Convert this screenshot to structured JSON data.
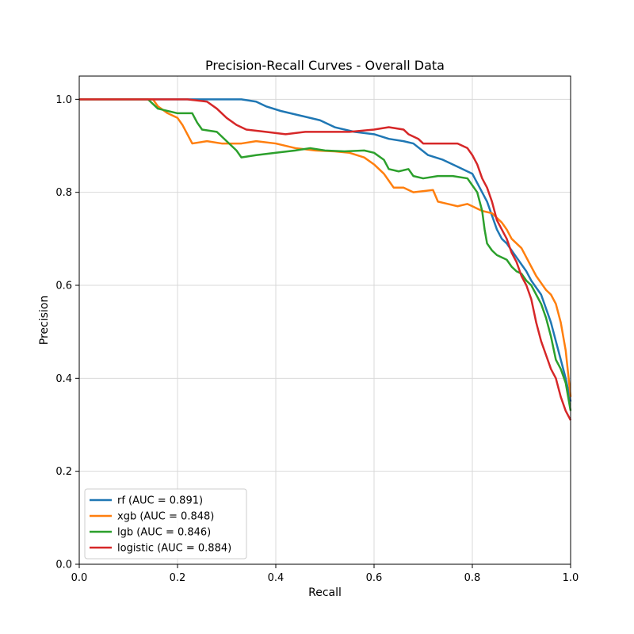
{
  "chart_data": {
    "type": "line",
    "title": "Precision-Recall Curves - Overall Data",
    "xlabel": "Recall",
    "ylabel": "Precision",
    "xlim": [
      0.0,
      1.0
    ],
    "ylim": [
      0.0,
      1.05
    ],
    "xticks": [
      0.0,
      0.2,
      0.4,
      0.6,
      0.8,
      1.0
    ],
    "yticks": [
      0.0,
      0.2,
      0.4,
      0.6,
      0.8,
      1.0
    ],
    "xtick_labels": [
      "0.0",
      "0.2",
      "0.4",
      "0.6",
      "0.8",
      "1.0"
    ],
    "ytick_labels": [
      "0.0",
      "0.2",
      "0.4",
      "0.6",
      "0.8",
      "1.0"
    ],
    "grid": true,
    "legend_position": "lower-left",
    "series": [
      {
        "name": "rf (AUC = 0.891)",
        "color": "#1f77b4",
        "points": [
          [
            0.0,
            1.0
          ],
          [
            0.33,
            1.0
          ],
          [
            0.36,
            0.995
          ],
          [
            0.38,
            0.985
          ],
          [
            0.41,
            0.975
          ],
          [
            0.45,
            0.965
          ],
          [
            0.49,
            0.955
          ],
          [
            0.52,
            0.94
          ],
          [
            0.56,
            0.93
          ],
          [
            0.6,
            0.925
          ],
          [
            0.63,
            0.915
          ],
          [
            0.66,
            0.91
          ],
          [
            0.68,
            0.905
          ],
          [
            0.71,
            0.88
          ],
          [
            0.74,
            0.87
          ],
          [
            0.77,
            0.855
          ],
          [
            0.8,
            0.84
          ],
          [
            0.81,
            0.82
          ],
          [
            0.82,
            0.8
          ],
          [
            0.83,
            0.78
          ],
          [
            0.84,
            0.75
          ],
          [
            0.85,
            0.72
          ],
          [
            0.86,
            0.7
          ],
          [
            0.87,
            0.69
          ],
          [
            0.88,
            0.675
          ],
          [
            0.89,
            0.66
          ],
          [
            0.9,
            0.645
          ],
          [
            0.91,
            0.63
          ],
          [
            0.92,
            0.61
          ],
          [
            0.94,
            0.58
          ],
          [
            0.95,
            0.55
          ],
          [
            0.96,
            0.52
          ],
          [
            0.97,
            0.48
          ],
          [
            0.98,
            0.44
          ],
          [
            0.99,
            0.4
          ],
          [
            1.0,
            0.35
          ]
        ]
      },
      {
        "name": "xgb (AUC = 0.848)",
        "color": "#ff7f0e",
        "points": [
          [
            0.0,
            1.0
          ],
          [
            0.15,
            1.0
          ],
          [
            0.16,
            0.985
          ],
          [
            0.18,
            0.97
          ],
          [
            0.2,
            0.96
          ],
          [
            0.21,
            0.945
          ],
          [
            0.22,
            0.925
          ],
          [
            0.23,
            0.905
          ],
          [
            0.26,
            0.91
          ],
          [
            0.29,
            0.905
          ],
          [
            0.33,
            0.905
          ],
          [
            0.36,
            0.91
          ],
          [
            0.4,
            0.905
          ],
          [
            0.44,
            0.895
          ],
          [
            0.48,
            0.89
          ],
          [
            0.52,
            0.888
          ],
          [
            0.55,
            0.885
          ],
          [
            0.58,
            0.875
          ],
          [
            0.6,
            0.86
          ],
          [
            0.62,
            0.84
          ],
          [
            0.63,
            0.825
          ],
          [
            0.64,
            0.81
          ],
          [
            0.66,
            0.81
          ],
          [
            0.68,
            0.8
          ],
          [
            0.72,
            0.805
          ],
          [
            0.73,
            0.78
          ],
          [
            0.75,
            0.775
          ],
          [
            0.77,
            0.77
          ],
          [
            0.79,
            0.775
          ],
          [
            0.8,
            0.77
          ],
          [
            0.81,
            0.765
          ],
          [
            0.82,
            0.76
          ],
          [
            0.84,
            0.755
          ],
          [
            0.85,
            0.745
          ],
          [
            0.86,
            0.735
          ],
          [
            0.87,
            0.72
          ],
          [
            0.88,
            0.7
          ],
          [
            0.89,
            0.69
          ],
          [
            0.9,
            0.68
          ],
          [
            0.91,
            0.66
          ],
          [
            0.92,
            0.64
          ],
          [
            0.93,
            0.62
          ],
          [
            0.94,
            0.605
          ],
          [
            0.95,
            0.59
          ],
          [
            0.96,
            0.58
          ],
          [
            0.97,
            0.56
          ],
          [
            0.98,
            0.52
          ],
          [
            0.99,
            0.46
          ],
          [
            1.0,
            0.36
          ]
        ]
      },
      {
        "name": "lgb (AUC = 0.846)",
        "color": "#2ca02c",
        "points": [
          [
            0.0,
            1.0
          ],
          [
            0.14,
            1.0
          ],
          [
            0.16,
            0.98
          ],
          [
            0.2,
            0.97
          ],
          [
            0.23,
            0.97
          ],
          [
            0.24,
            0.95
          ],
          [
            0.25,
            0.935
          ],
          [
            0.28,
            0.93
          ],
          [
            0.3,
            0.91
          ],
          [
            0.32,
            0.89
          ],
          [
            0.33,
            0.875
          ],
          [
            0.36,
            0.88
          ],
          [
            0.4,
            0.885
          ],
          [
            0.44,
            0.89
          ],
          [
            0.47,
            0.895
          ],
          [
            0.5,
            0.89
          ],
          [
            0.54,
            0.888
          ],
          [
            0.58,
            0.89
          ],
          [
            0.6,
            0.885
          ],
          [
            0.62,
            0.87
          ],
          [
            0.63,
            0.85
          ],
          [
            0.65,
            0.845
          ],
          [
            0.67,
            0.85
          ],
          [
            0.68,
            0.835
          ],
          [
            0.7,
            0.83
          ],
          [
            0.73,
            0.835
          ],
          [
            0.76,
            0.835
          ],
          [
            0.79,
            0.83
          ],
          [
            0.8,
            0.815
          ],
          [
            0.81,
            0.8
          ],
          [
            0.82,
            0.76
          ],
          [
            0.825,
            0.72
          ],
          [
            0.83,
            0.69
          ],
          [
            0.84,
            0.675
          ],
          [
            0.85,
            0.665
          ],
          [
            0.87,
            0.655
          ],
          [
            0.88,
            0.64
          ],
          [
            0.89,
            0.63
          ],
          [
            0.9,
            0.625
          ],
          [
            0.91,
            0.61
          ],
          [
            0.92,
            0.6
          ],
          [
            0.93,
            0.58
          ],
          [
            0.94,
            0.56
          ],
          [
            0.95,
            0.53
          ],
          [
            0.96,
            0.49
          ],
          [
            0.97,
            0.44
          ],
          [
            0.98,
            0.42
          ],
          [
            0.99,
            0.39
          ],
          [
            1.0,
            0.33
          ]
        ]
      },
      {
        "name": "logistic (AUC = 0.884)",
        "color": "#d62728",
        "points": [
          [
            0.0,
            1.0
          ],
          [
            0.22,
            1.0
          ],
          [
            0.26,
            0.995
          ],
          [
            0.28,
            0.98
          ],
          [
            0.3,
            0.96
          ],
          [
            0.32,
            0.945
          ],
          [
            0.34,
            0.935
          ],
          [
            0.38,
            0.93
          ],
          [
            0.42,
            0.925
          ],
          [
            0.46,
            0.93
          ],
          [
            0.5,
            0.93
          ],
          [
            0.55,
            0.93
          ],
          [
            0.6,
            0.935
          ],
          [
            0.63,
            0.94
          ],
          [
            0.66,
            0.935
          ],
          [
            0.67,
            0.925
          ],
          [
            0.69,
            0.915
          ],
          [
            0.7,
            0.905
          ],
          [
            0.73,
            0.905
          ],
          [
            0.77,
            0.905
          ],
          [
            0.79,
            0.895
          ],
          [
            0.8,
            0.88
          ],
          [
            0.81,
            0.86
          ],
          [
            0.82,
            0.83
          ],
          [
            0.83,
            0.81
          ],
          [
            0.84,
            0.78
          ],
          [
            0.85,
            0.74
          ],
          [
            0.86,
            0.72
          ],
          [
            0.87,
            0.7
          ],
          [
            0.88,
            0.67
          ],
          [
            0.89,
            0.65
          ],
          [
            0.9,
            0.62
          ],
          [
            0.91,
            0.6
          ],
          [
            0.92,
            0.57
          ],
          [
            0.93,
            0.52
          ],
          [
            0.94,
            0.48
          ],
          [
            0.95,
            0.45
          ],
          [
            0.96,
            0.42
          ],
          [
            0.97,
            0.4
          ],
          [
            0.98,
            0.36
          ],
          [
            0.99,
            0.33
          ],
          [
            1.0,
            0.31
          ]
        ]
      }
    ]
  }
}
